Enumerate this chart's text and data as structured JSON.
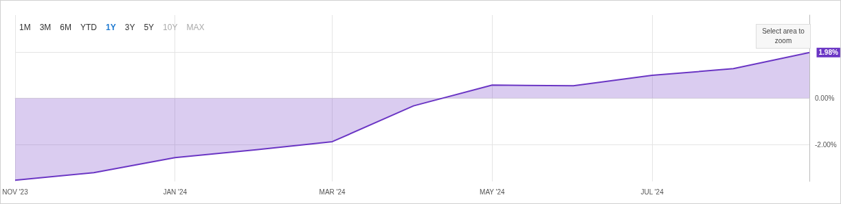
{
  "chart_data": {
    "type": "area",
    "x": [
      "2023-11-01",
      "2023-12-01",
      "2024-01-01",
      "2024-02-01",
      "2024-03-01",
      "2024-04-01",
      "2024-05-01",
      "2024-06-01",
      "2024-07-01",
      "2024-08-01",
      "2024-08-30"
    ],
    "series": [
      {
        "color": "#6a35c4",
        "values": [
          -3.55,
          -3.22,
          -2.57,
          -2.23,
          -1.88,
          -0.33,
          0.57,
          0.54,
          0.99,
          1.28,
          1.98
        ]
      }
    ],
    "xlim": [
      "2023-11-01",
      "2024-08-30"
    ],
    "xticks": [
      {
        "value": "2023-11-01",
        "label": "NOV '23"
      },
      {
        "value": "2024-01-01",
        "label": "JAN '24"
      },
      {
        "value": "2024-03-01",
        "label": "MAR '24"
      },
      {
        "value": "2024-05-01",
        "label": "MAY '24"
      },
      {
        "value": "2024-07-01",
        "label": "JUL '24"
      }
    ],
    "ylim": [
      -3.6,
      3.6
    ],
    "yticks": [
      {
        "value": -2,
        "label": "-2.00%"
      },
      {
        "value": 0,
        "label": "0.00%"
      },
      {
        "value": 2,
        "label": null
      }
    ],
    "grid": true,
    "annotations": [
      "1.98%",
      "1M",
      "3M",
      "6M",
      "YTD",
      "1Y",
      "3Y",
      "5Y",
      "10Y",
      "MAX",
      "Select area to zoom"
    ]
  }
}
